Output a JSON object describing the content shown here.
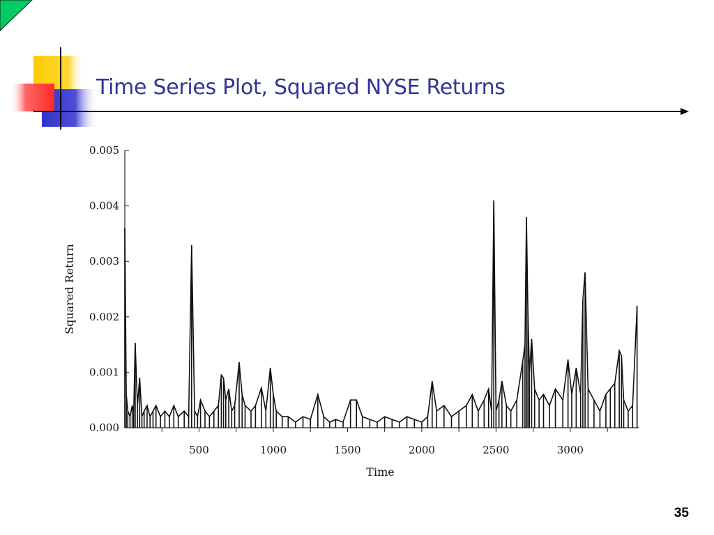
{
  "slide": {
    "title": "Time Series Plot, Squared NYSE Returns",
    "page_number": "35",
    "colors": {
      "title": "#333399",
      "corner_triangle": "#00cc66",
      "deco_yellow": "#ffcc00",
      "deco_red": "#ff3333",
      "deco_blue": "#3333cc"
    }
  },
  "chart_data": {
    "type": "line",
    "title": "",
    "xlabel": "Time",
    "ylabel": "Squared Return",
    "xlim": [
      0,
      3461
    ],
    "ylim": [
      0,
      0.005
    ],
    "xticks": [
      {
        "value": 500,
        "label": "500"
      },
      {
        "value": 1000,
        "label": "1000"
      },
      {
        "value": 1500,
        "label": "1500"
      },
      {
        "value": 2000,
        "label": "2000"
      },
      {
        "value": 2500,
        "label": "2500"
      },
      {
        "value": 3000,
        "label": "3000"
      }
    ],
    "yticks": [
      {
        "value": 0.0,
        "label": "0.000"
      },
      {
        "value": 0.001,
        "label": "0.001"
      },
      {
        "value": 0.002,
        "label": "0.002"
      },
      {
        "value": 0.003,
        "label": "0.003"
      },
      {
        "value": 0.004,
        "label": "0.004"
      },
      {
        "value": 0.005,
        "label": "0.005"
      }
    ],
    "grid": false,
    "series": [
      {
        "color": "#111111",
        "points": [
          [
            0,
            0.0036
          ],
          [
            10,
            0.0006
          ],
          [
            20,
            0.0003
          ],
          [
            35,
            0.0002
          ],
          [
            50,
            0.0004
          ],
          [
            60,
            0.0003
          ],
          [
            70,
            0.00153
          ],
          [
            85,
            0.0004
          ],
          [
            100,
            0.0009
          ],
          [
            115,
            0.0002
          ],
          [
            130,
            0.0003
          ],
          [
            150,
            0.0004
          ],
          [
            170,
            0.0002
          ],
          [
            190,
            0.0003
          ],
          [
            210,
            0.0004
          ],
          [
            240,
            0.0002
          ],
          [
            270,
            0.0003
          ],
          [
            300,
            0.0002
          ],
          [
            330,
            0.0004
          ],
          [
            360,
            0.0002
          ],
          [
            400,
            0.0003
          ],
          [
            430,
            0.0002
          ],
          [
            450,
            0.00329
          ],
          [
            470,
            0.0003
          ],
          [
            490,
            0.0002
          ],
          [
            510,
            0.0005
          ],
          [
            540,
            0.0003
          ],
          [
            570,
            0.0002
          ],
          [
            600,
            0.0003
          ],
          [
            630,
            0.0004
          ],
          [
            650,
            0.00095
          ],
          [
            665,
            0.0009
          ],
          [
            680,
            0.0005
          ],
          [
            700,
            0.0007
          ],
          [
            720,
            0.0003
          ],
          [
            740,
            0.0004
          ],
          [
            770,
            0.00118
          ],
          [
            790,
            0.0006
          ],
          [
            810,
            0.0004
          ],
          [
            850,
            0.0003
          ],
          [
            880,
            0.0004
          ],
          [
            920,
            0.00072
          ],
          [
            950,
            0.0003
          ],
          [
            980,
            0.00108
          ],
          [
            1000,
            0.0006
          ],
          [
            1020,
            0.0003
          ],
          [
            1060,
            0.0002
          ],
          [
            1100,
            0.0002
          ],
          [
            1150,
            0.0001
          ],
          [
            1200,
            0.0002
          ],
          [
            1250,
            0.00015
          ],
          [
            1300,
            0.0006
          ],
          [
            1340,
            0.0002
          ],
          [
            1380,
            0.0001
          ],
          [
            1420,
            0.00015
          ],
          [
            1470,
            0.0001
          ],
          [
            1520,
            0.0005
          ],
          [
            1560,
            0.0005
          ],
          [
            1600,
            0.0002
          ],
          [
            1650,
            0.00015
          ],
          [
            1700,
            0.0001
          ],
          [
            1750,
            0.0002
          ],
          [
            1800,
            0.00015
          ],
          [
            1850,
            0.0001
          ],
          [
            1900,
            0.0002
          ],
          [
            1950,
            0.00015
          ],
          [
            2000,
            0.0001
          ],
          [
            2040,
            0.0002
          ],
          [
            2070,
            0.00084
          ],
          [
            2100,
            0.0003
          ],
          [
            2150,
            0.0004
          ],
          [
            2200,
            0.0002
          ],
          [
            2250,
            0.0003
          ],
          [
            2300,
            0.0004
          ],
          [
            2340,
            0.0006
          ],
          [
            2380,
            0.0003
          ],
          [
            2420,
            0.0005
          ],
          [
            2450,
            0.0007
          ],
          [
            2470,
            0.0003
          ],
          [
            2485,
            0.0041
          ],
          [
            2500,
            0.0003
          ],
          [
            2520,
            0.0005
          ],
          [
            2540,
            0.00084
          ],
          [
            2570,
            0.0004
          ],
          [
            2600,
            0.0003
          ],
          [
            2640,
            0.0005
          ],
          [
            2680,
            0.0012
          ],
          [
            2695,
            0.0015
          ],
          [
            2705,
            0.0038
          ],
          [
            2715,
            0.0021
          ],
          [
            2725,
            0.001
          ],
          [
            2740,
            0.0016
          ],
          [
            2760,
            0.0007
          ],
          [
            2790,
            0.0005
          ],
          [
            2820,
            0.0006
          ],
          [
            2860,
            0.0004
          ],
          [
            2900,
            0.0007
          ],
          [
            2950,
            0.0005
          ],
          [
            2985,
            0.00123
          ],
          [
            3010,
            0.0006
          ],
          [
            3040,
            0.00108
          ],
          [
            3070,
            0.0006
          ],
          [
            3085,
            0.0023
          ],
          [
            3100,
            0.0028
          ],
          [
            3120,
            0.0007
          ],
          [
            3160,
            0.0005
          ],
          [
            3200,
            0.0003
          ],
          [
            3240,
            0.0006
          ],
          [
            3270,
            0.0007
          ],
          [
            3300,
            0.0008
          ],
          [
            3330,
            0.00139
          ],
          [
            3345,
            0.0013
          ],
          [
            3360,
            0.0005
          ],
          [
            3390,
            0.0003
          ],
          [
            3420,
            0.0004
          ],
          [
            3450,
            0.0022
          ]
        ]
      }
    ]
  }
}
